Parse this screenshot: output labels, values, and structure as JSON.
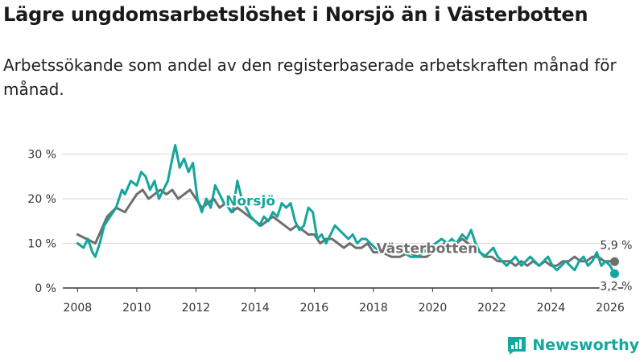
{
  "title": "Lägre ungdomsarbetslöshet i Norsjö än i Västerbotten",
  "subtitle": "Arbetssökande som andel av den registerbaserade arbetskraften månad för månad.",
  "logo": {
    "text": "Newsworthy",
    "icon": "newsworthy-chart-icon"
  },
  "colors": {
    "norsjo": "#14a59c",
    "vasterbotten": "#6f6f6f",
    "grid": "#d8d8d8",
    "axis": "#333333"
  },
  "chart_data": {
    "type": "line",
    "title": "Lägre ungdomsarbetslöshet i Norsjö än i Västerbotten",
    "xlabel": "",
    "ylabel": "",
    "xlim": [
      2007.5,
      2026.6
    ],
    "ylim": [
      0,
      33
    ],
    "x_ticks": [
      2008,
      2010,
      2012,
      2014,
      2016,
      2018,
      2020,
      2022,
      2024,
      2026
    ],
    "x_tick_labels": [
      "2008",
      "2010",
      "2012",
      "2014",
      "2016",
      "2018",
      "2020",
      "2022",
      "2024",
      "2026"
    ],
    "y_ticks": [
      0,
      10,
      20,
      30
    ],
    "y_tick_labels": [
      "0 %",
      "10 %",
      "20 %",
      "30 %"
    ],
    "grid": true,
    "series": [
      {
        "name": "Norsjö",
        "label": "Norsjö",
        "end_label": "3,2 %",
        "x": [
          2008.0,
          2008.2,
          2008.35,
          2008.5,
          2008.6,
          2008.75,
          2008.9,
          2009.1,
          2009.3,
          2009.5,
          2009.6,
          2009.8,
          2010.0,
          2010.15,
          2010.3,
          2010.45,
          2010.6,
          2010.75,
          2010.9,
          2011.05,
          2011.2,
          2011.3,
          2011.45,
          2011.6,
          2011.75,
          2011.9,
          2012.05,
          2012.2,
          2012.35,
          2012.5,
          2012.65,
          2012.8,
          2012.95,
          2013.1,
          2013.25,
          2013.4,
          2013.55,
          2013.7,
          2013.85,
          2014.0,
          2014.15,
          2014.3,
          2014.45,
          2014.6,
          2014.75,
          2014.9,
          2015.05,
          2015.2,
          2015.35,
          2015.5,
          2015.65,
          2015.8,
          2015.95,
          2016.1,
          2016.25,
          2016.4,
          2016.55,
          2016.7,
          2016.85,
          2017.0,
          2017.15,
          2017.3,
          2017.45,
          2017.6,
          2017.75,
          2017.9,
          2018.05,
          2018.3,
          2018.6,
          2018.85,
          2019.0,
          2019.25,
          2019.5,
          2019.7,
          2019.85,
          2020.1,
          2020.3,
          2020.5,
          2020.65,
          2020.8,
          2021.0,
          2021.15,
          2021.3,
          2021.45,
          2021.6,
          2021.75,
          2021.9,
          2022.05,
          2022.2,
          2022.35,
          2022.5,
          2022.65,
          2022.8,
          2023.0,
          2023.15,
          2023.3,
          2023.45,
          2023.6,
          2023.75,
          2023.9,
          2024.05,
          2024.2,
          2024.35,
          2024.5,
          2024.65,
          2024.8,
          2024.95,
          2025.1,
          2025.25,
          2025.4,
          2025.55,
          2025.7,
          2025.85,
          2026.0,
          2026.15
        ],
        "values": [
          10,
          9,
          11,
          8,
          7,
          10,
          14,
          16,
          18,
          22,
          21,
          24,
          23,
          26,
          25,
          22,
          24,
          20,
          22,
          24,
          29,
          32,
          27,
          29,
          26,
          28,
          20,
          17,
          20,
          18,
          23,
          21,
          19,
          18,
          17,
          24,
          20,
          18,
          16,
          15,
          14,
          16,
          15,
          17,
          16,
          19,
          18,
          19,
          15,
          13,
          14,
          18,
          17,
          11,
          12,
          10,
          12,
          14,
          13,
          12,
          11,
          12,
          10,
          11,
          11,
          10,
          9,
          8,
          8,
          9,
          8,
          7,
          7,
          8,
          9,
          10,
          11,
          10,
          11,
          10,
          12,
          11,
          13,
          10,
          8,
          7,
          8,
          9,
          7,
          6,
          5,
          6,
          7,
          5,
          6,
          7,
          6,
          5,
          6,
          7,
          5,
          4,
          5,
          6,
          5,
          4,
          6,
          7,
          5,
          6,
          8,
          5,
          6,
          5,
          3.2
        ]
      },
      {
        "name": "Västerbotten",
        "label": "Västerbotten",
        "end_label": "5,9 %",
        "x": [
          2008.0,
          2008.3,
          2008.6,
          2008.8,
          2009.0,
          2009.3,
          2009.6,
          2009.8,
          2010.0,
          2010.2,
          2010.4,
          2010.6,
          2010.8,
          2011.0,
          2011.2,
          2011.4,
          2011.6,
          2011.8,
          2012.0,
          2012.2,
          2012.4,
          2012.6,
          2012.8,
          2013.0,
          2013.2,
          2013.4,
          2013.6,
          2013.8,
          2014.0,
          2014.2,
          2014.4,
          2014.6,
          2014.8,
          2015.0,
          2015.2,
          2015.4,
          2015.6,
          2015.8,
          2016.0,
          2016.2,
          2016.4,
          2016.6,
          2016.8,
          2017.0,
          2017.2,
          2017.4,
          2017.6,
          2017.8,
          2018.0,
          2018.3,
          2018.6,
          2018.9,
          2019.2,
          2019.5,
          2019.8,
          2020.0,
          2020.2,
          2020.4,
          2020.6,
          2020.8,
          2021.0,
          2021.2,
          2021.4,
          2021.6,
          2021.8,
          2022.0,
          2022.2,
          2022.4,
          2022.6,
          2022.8,
          2023.0,
          2023.2,
          2023.4,
          2023.6,
          2023.8,
          2024.0,
          2024.2,
          2024.4,
          2024.6,
          2024.8,
          2025.0,
          2025.2,
          2025.4,
          2025.6,
          2025.8,
          2026.0,
          2026.15
        ],
        "values": [
          12,
          11,
          10,
          13,
          16,
          18,
          17,
          19,
          21,
          22,
          20,
          21,
          22,
          21,
          22,
          20,
          21,
          22,
          20,
          18,
          19,
          20,
          18,
          19,
          17,
          18,
          17,
          16,
          15,
          14,
          15,
          16,
          15,
          14,
          13,
          14,
          13,
          12,
          12,
          10,
          11,
          11,
          10,
          9,
          10,
          9,
          9,
          10,
          8,
          8,
          7,
          7,
          8,
          7,
          7,
          8,
          9,
          10,
          9,
          10,
          11,
          10,
          9,
          8,
          7,
          7,
          6,
          6,
          6,
          5,
          6,
          5,
          6,
          5,
          6,
          5,
          5,
          6,
          6,
          7,
          6,
          6,
          7,
          7,
          6,
          6,
          5.9
        ]
      }
    ]
  }
}
